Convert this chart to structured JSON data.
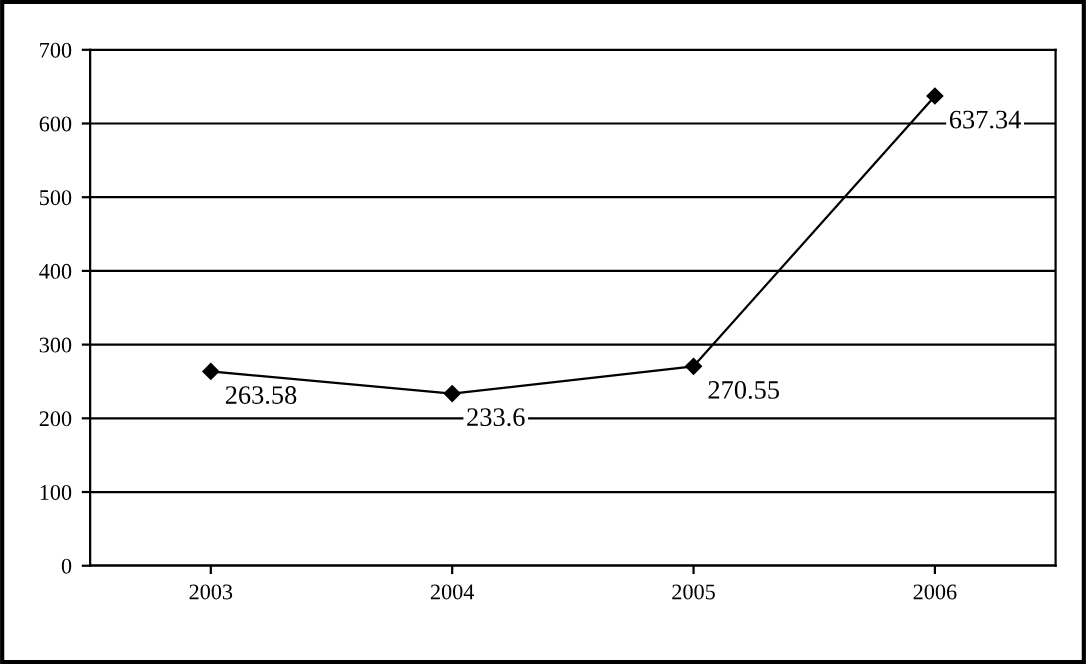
{
  "chart_data": {
    "type": "line",
    "categories": [
      "2003",
      "2004",
      "2005",
      "2006"
    ],
    "series": [
      {
        "color": "#000000",
        "values": [
          263.58,
          233.6,
          270.55,
          637.34
        ]
      }
    ],
    "ylim": [
      0,
      700
    ],
    "yticks": [
      0,
      100,
      200,
      300,
      400,
      500,
      600,
      700
    ],
    "grid": "y",
    "marker": "diamond",
    "line_style": "solid",
    "data_labels": true,
    "legend": false
  }
}
